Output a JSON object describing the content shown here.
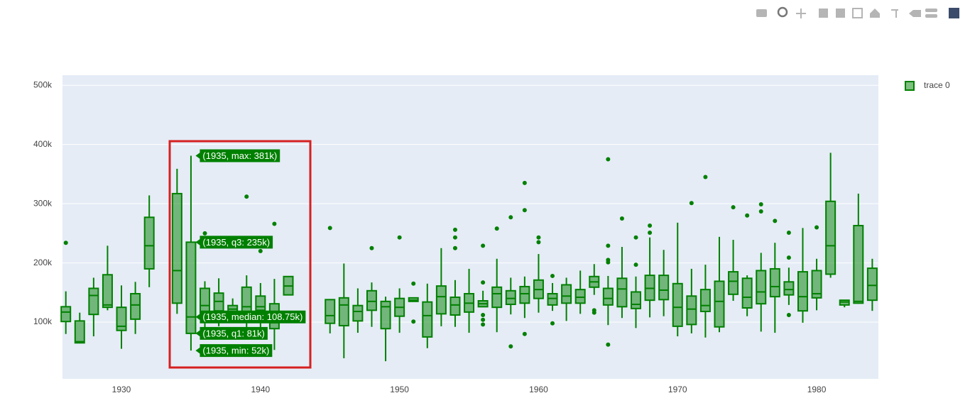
{
  "chart_data": {
    "type": "box",
    "xlim": [
      1925.76,
      1984.44
    ],
    "xticks": [
      1930,
      1940,
      1950,
      1960,
      1970,
      1980
    ],
    "ylim": [
      4200,
      517000
    ],
    "yticks": [
      {
        "value": 100000,
        "label": "100k"
      },
      {
        "value": 200000,
        "label": "200k"
      },
      {
        "value": 300000,
        "label": "300k"
      },
      {
        "value": 400000,
        "label": "400k"
      },
      {
        "value": 500000,
        "label": "500k"
      }
    ],
    "grid": true,
    "legend": "right",
    "series": [
      {
        "name": "trace 0",
        "color": "#008000",
        "fill": "rgba(0,128,0,0.5)",
        "x": [
          1926,
          1927,
          1928,
          1929,
          1930,
          1931,
          1932,
          1934,
          1935,
          1936,
          1937,
          1938,
          1939,
          1940,
          1941,
          1942,
          1945,
          1946,
          1947,
          1948,
          1949,
          1950,
          1951,
          1952,
          1953,
          1954,
          1955,
          1956,
          1957,
          1958,
          1959,
          1960,
          1961,
          1962,
          1963,
          1964,
          1965,
          1966,
          1967,
          1968,
          1969,
          1970,
          1971,
          1972,
          1973,
          1974,
          1975,
          1976,
          1977,
          1978,
          1979,
          1980,
          1981,
          1982,
          1983,
          1984
        ],
        "min": [
          80000,
          64000,
          76000,
          120000,
          55000,
          80000,
          159000,
          114000,
          52000,
          74000,
          93000,
          100000,
          81000,
          89000,
          53000,
          146000,
          81000,
          39000,
          82000,
          92000,
          34000,
          82000,
          135000,
          56000,
          93000,
          92000,
          82000,
          126000,
          83000,
          113000,
          107000,
          116000,
          119000,
          102000,
          114000,
          146000,
          95000,
          107000,
          90000,
          108000,
          110000,
          76000,
          81000,
          74000,
          83000,
          136000,
          110000,
          84000,
          82000,
          129000,
          99000,
          120000,
          175000,
          125000,
          131000,
          119000
        ],
        "q1": [
          101000,
          65000,
          113000,
          125000,
          86000,
          105000,
          190000,
          132000,
          81000,
          112000,
          119000,
          115000,
          117000,
          120000,
          89000,
          146000,
          98000,
          94000,
          102000,
          120000,
          89000,
          110000,
          135000,
          75000,
          114000,
          112000,
          117000,
          126000,
          125000,
          130000,
          132000,
          140000,
          129000,
          132000,
          132000,
          159000,
          129000,
          126000,
          123000,
          137000,
          138000,
          93000,
          96000,
          118000,
          92000,
          147000,
          124000,
          131000,
          143000,
          146000,
          119000,
          141000,
          181000,
          129000,
          132000,
          137000
        ],
        "median": [
          117000,
          67000,
          145000,
          129000,
          93000,
          129000,
          229000,
          187000,
          108750,
          128000,
          135000,
          122000,
          126000,
          126000,
          99000,
          161000,
          111000,
          129000,
          118000,
          135000,
          126000,
          125000,
          137000,
          111000,
          143000,
          129000,
          132000,
          131000,
          148000,
          140000,
          148000,
          155000,
          140000,
          144000,
          142000,
          168000,
          140000,
          156000,
          130000,
          157000,
          154000,
          125000,
          122000,
          128000,
          135000,
          169000,
          142000,
          151000,
          160000,
          155000,
          143000,
          148000,
          229000,
          134000,
          135000,
          162000
        ],
        "q3": [
          126000,
          102000,
          157000,
          180000,
          125000,
          148000,
          277000,
          317000,
          235000,
          157000,
          149000,
          128000,
          159000,
          144000,
          131000,
          177000,
          138000,
          141000,
          128000,
          153000,
          135000,
          140000,
          141000,
          134000,
          161000,
          142000,
          148000,
          136000,
          159000,
          153000,
          160000,
          171000,
          148000,
          163000,
          155000,
          177000,
          157000,
          174000,
          151000,
          179000,
          179000,
          165000,
          144000,
          155000,
          169000,
          185000,
          174000,
          187000,
          190000,
          168000,
          185000,
          187000,
          304000,
          137000,
          263000,
          191000
        ],
        "max": [
          152000,
          116000,
          175000,
          229000,
          162000,
          168000,
          314000,
          359000,
          381000,
          169000,
          174000,
          140000,
          179000,
          166000,
          173000,
          177000,
          138000,
          199000,
          157000,
          167000,
          143000,
          157000,
          141000,
          165000,
          225000,
          171000,
          190000,
          153000,
          207000,
          175000,
          177000,
          215000,
          166000,
          175000,
          187000,
          198000,
          178000,
          227000,
          177000,
          243000,
          222000,
          268000,
          190000,
          197000,
          244000,
          239000,
          179000,
          217000,
          234000,
          192000,
          259000,
          207000,
          386000,
          137000,
          317000,
          207000
        ],
        "outliers": [
          [
            234000
          ],
          [],
          [],
          [],
          [],
          [],
          [],
          [],
          [],
          [
            250000
          ],
          [],
          [],
          [
            312000
          ],
          [
            220000
          ],
          [
            266000
          ],
          [],
          [
            259000
          ],
          [],
          [],
          [
            225000
          ],
          [],
          [
            243000
          ],
          [
            165000,
            101000
          ],
          [],
          [],
          [
            256000,
            243000,
            225000
          ],
          [],
          [
            229000,
            167000,
            112000,
            104000,
            96000
          ],
          [
            258000
          ],
          [
            277000,
            59000
          ],
          [
            335000,
            289000,
            80000
          ],
          [
            243000,
            235000
          ],
          [
            178000,
            98000
          ],
          [],
          [],
          [
            120000,
            116000
          ],
          [
            375000,
            229000,
            205000,
            201000,
            62000
          ],
          [
            275000
          ],
          [
            243000,
            197000
          ],
          [
            263000,
            251000
          ],
          [],
          [],
          [
            301000
          ],
          [
            345000
          ],
          [],
          [
            294000
          ],
          [
            280000
          ],
          [
            299000,
            287000
          ],
          [
            271000
          ],
          [
            251000,
            209000,
            112000
          ],
          [],
          [
            260000
          ],
          [],
          [],
          [],
          []
        ],
        "hover_labels": [
          null,
          null,
          null,
          null,
          null,
          null,
          null,
          null,
          {
            "max": "(1935, max: 381k)",
            "q3": "(1935, q3: 235k)",
            "median": "(1935, median: 108.75k)",
            "q1": "(1935, q1: 81k)",
            "min": "(1935, min: 52k)"
          },
          null,
          null,
          null,
          null,
          null,
          null,
          null,
          null,
          null,
          null,
          null,
          null,
          null,
          null,
          null,
          null,
          null,
          null,
          null,
          null,
          null,
          null,
          null,
          null,
          null,
          null,
          null,
          null,
          null,
          null,
          null,
          null,
          null,
          null,
          null,
          null,
          null,
          null,
          null,
          null,
          null,
          null,
          null,
          null,
          null,
          null,
          null
        ]
      }
    ]
  }
}
